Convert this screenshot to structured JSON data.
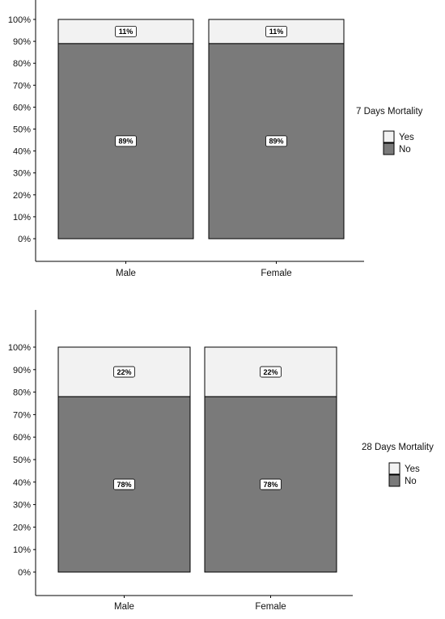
{
  "chart_data": [
    {
      "type": "bar",
      "stacked": true,
      "categories": [
        "Male",
        "Female"
      ],
      "series": [
        {
          "name": "Yes",
          "values": [
            11,
            11
          ],
          "labels": [
            "11%",
            "11%"
          ],
          "color": "#f2f2f2"
        },
        {
          "name": "No",
          "values": [
            89,
            89
          ],
          "labels": [
            "89%",
            "89%"
          ],
          "color": "#7a7a7a"
        }
      ],
      "ylim": [
        0,
        100
      ],
      "yticks": [
        "0%",
        "10%",
        "20%",
        "30%",
        "40%",
        "50%",
        "60%",
        "70%",
        "80%",
        "90%",
        "100%"
      ],
      "legend": {
        "title": "7 Days Mortality",
        "position": "right",
        "items": [
          "Yes",
          "No"
        ]
      },
      "grid": false
    },
    {
      "type": "bar",
      "stacked": true,
      "categories": [
        "Male",
        "Female"
      ],
      "series": [
        {
          "name": "Yes",
          "values": [
            22,
            22
          ],
          "labels": [
            "22%",
            "22%"
          ],
          "color": "#f2f2f2"
        },
        {
          "name": "No",
          "values": [
            78,
            78
          ],
          "labels": [
            "78%",
            "78%"
          ],
          "color": "#7a7a7a"
        }
      ],
      "ylim": [
        0,
        100
      ],
      "yticks": [
        "0%",
        "10%",
        "20%",
        "30%",
        "40%",
        "50%",
        "60%",
        "70%",
        "80%",
        "90%",
        "100%"
      ],
      "legend": {
        "title": "28 Days Mortality",
        "position": "right",
        "items": [
          "Yes",
          "No"
        ]
      },
      "grid": false
    }
  ]
}
